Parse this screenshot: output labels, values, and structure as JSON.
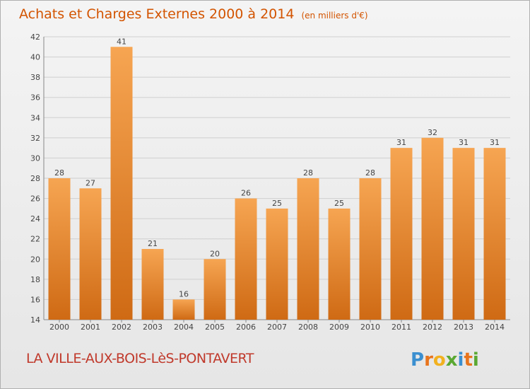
{
  "header": {
    "title": "Achats et Charges Externes 2000 à 2014",
    "unit": "(en milliers d'€)"
  },
  "footer": {
    "commune": "LA VILLE-AUX-BOIS-LèS-PONTAVERT",
    "logo_text": "Proxiti"
  },
  "colors": {
    "title": "#d35400",
    "bar_light": "#f6a552",
    "bar_dark": "#cf6a14",
    "commune": "#c0392b"
  },
  "chart_data": {
    "type": "bar",
    "title": "Achats et Charges Externes 2000 à 2014",
    "subtitle": "(en milliers d'€)",
    "xlabel": "",
    "ylabel": "",
    "categories": [
      "2000",
      "2001",
      "2002",
      "2003",
      "2004",
      "2005",
      "2006",
      "2007",
      "2008",
      "2009",
      "2010",
      "2011",
      "2012",
      "2013",
      "2014"
    ],
    "values": [
      28,
      27,
      41,
      21,
      16,
      20,
      26,
      25,
      28,
      25,
      28,
      31,
      32,
      31,
      31
    ],
    "ylim": [
      14,
      42
    ],
    "yticks": [
      14,
      16,
      18,
      20,
      22,
      24,
      26,
      28,
      30,
      32,
      34,
      36,
      38,
      40,
      42
    ],
    "grid": true,
    "legend": "none",
    "data_labels": true
  }
}
